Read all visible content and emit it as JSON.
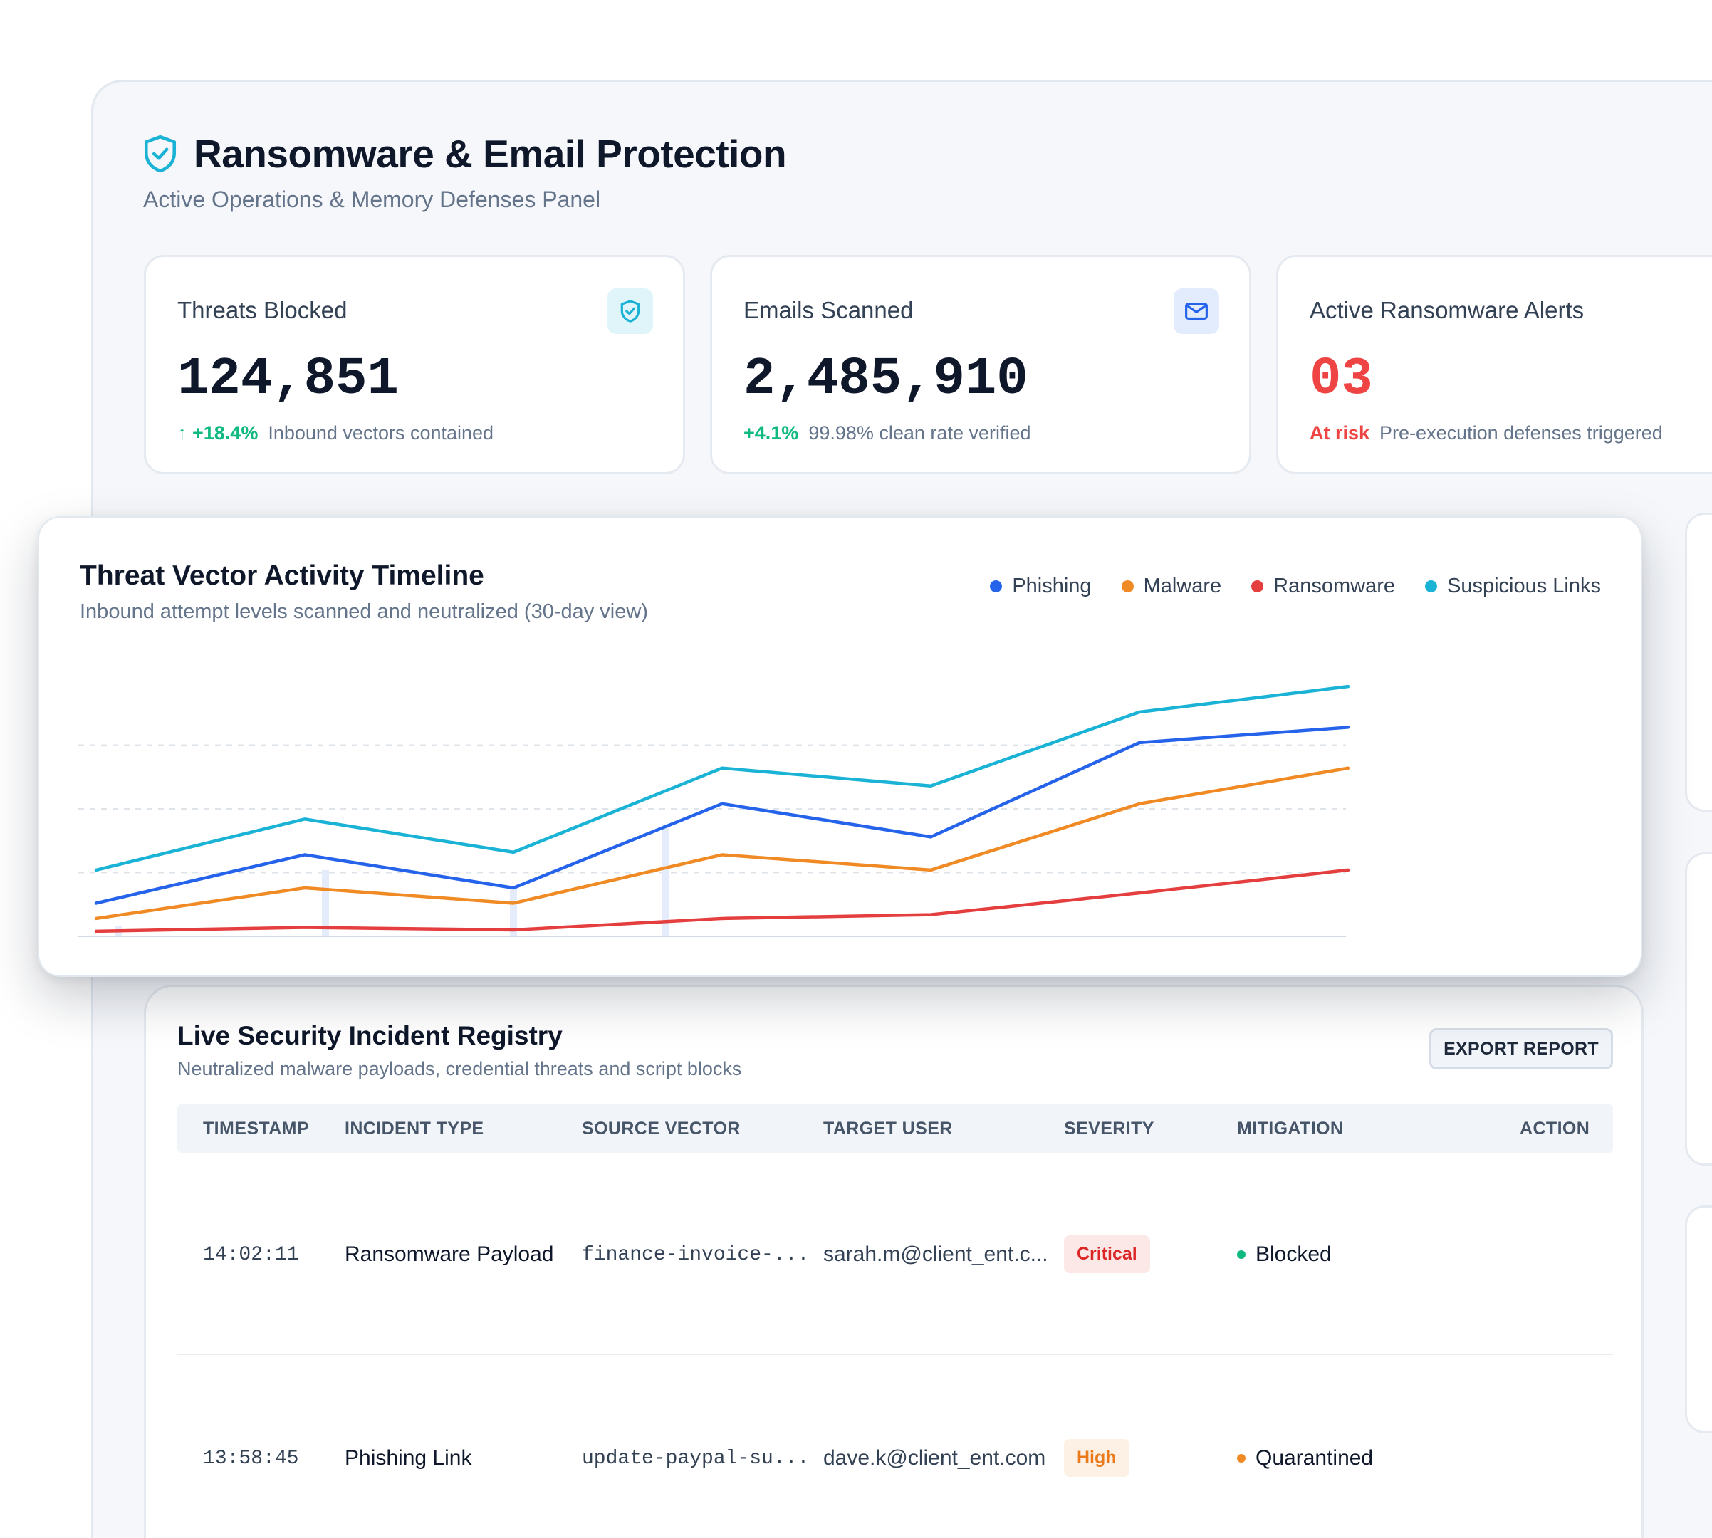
{
  "header": {
    "title": "Ransomware & Email Protection",
    "subtitle": "Active Operations & Memory Defenses Panel"
  },
  "stats": [
    {
      "label": "Threats Blocked",
      "value": "124,851",
      "trend": "↑ +18.4%",
      "note": "Inbound vectors contained",
      "trend_color": "#10b981",
      "icon": "shield-check-icon"
    },
    {
      "label": "Emails Scanned",
      "value": "2,485,910",
      "trend": "+4.1%",
      "note": "99.98% clean rate verified",
      "trend_color": "#10b981",
      "icon": "mail-icon"
    },
    {
      "label": "Active Ransomware Alerts",
      "value": "03",
      "trend": "At risk",
      "note": "Pre-execution defenses triggered",
      "trend_color": "#ef4444",
      "value_color": "#ef4444"
    }
  ],
  "chart": {
    "title": "Threat Vector Activity Timeline",
    "subtitle": "Inbound attempt levels scanned and neutralized (30-day view)",
    "legend": [
      "Phishing",
      "Malware",
      "Ransomware",
      "Suspicious Links"
    ]
  },
  "chart_data": {
    "type": "line",
    "x": [
      1,
      2,
      3,
      4,
      5,
      6,
      7
    ],
    "ylim": [
      0,
      100
    ],
    "grid": true,
    "legend_position": "top-right",
    "series": [
      {
        "name": "Phishing",
        "color": "#2563eb",
        "values": [
          13,
          32,
          19,
          52,
          39,
          76,
          82
        ]
      },
      {
        "name": "Malware",
        "color": "#f08a24",
        "values": [
          7,
          19,
          13,
          32,
          26,
          52,
          66
        ]
      },
      {
        "name": "Ransomware",
        "color": "#e53e3e",
        "values": [
          2,
          3.5,
          2.5,
          7,
          8.5,
          17,
          26
        ]
      },
      {
        "name": "Suspicious Links",
        "color": "#1ab3d6",
        "values": [
          26,
          46,
          33,
          66,
          59,
          88,
          98
        ]
      }
    ],
    "bars": [
      4,
      26,
      19,
      44,
      0,
      0,
      0
    ]
  },
  "registry": {
    "title": "Live Security Incident Registry",
    "subtitle": "Neutralized malware payloads, credential threats and script blocks",
    "export_label": "EXPORT REPORT",
    "columns": [
      "TIMESTAMP",
      "INCIDENT TYPE",
      "SOURCE VECTOR",
      "TARGET USER",
      "SEVERITY",
      "MITIGATION",
      "ACTION"
    ],
    "rows": [
      {
        "timestamp": "14:02:11",
        "type": "Ransomware Payload",
        "source": "finance-invoice-...",
        "user": "sarah.m@client_ent.c...",
        "severity": "Critical",
        "severity_color": "#dc2626",
        "severity_bg": "#fde8e8",
        "mitigation": "Blocked",
        "mitigation_color": "#10b981"
      },
      {
        "timestamp": "13:58:45",
        "type": "Phishing Link",
        "source": "update-paypal-su...",
        "user": "dave.k@client_ent.com",
        "severity": "High",
        "severity_color": "#ea7a1a",
        "severity_bg": "#fdf0e4",
        "mitigation": "Quarantined",
        "mitigation_color": "#f08a24"
      }
    ]
  }
}
